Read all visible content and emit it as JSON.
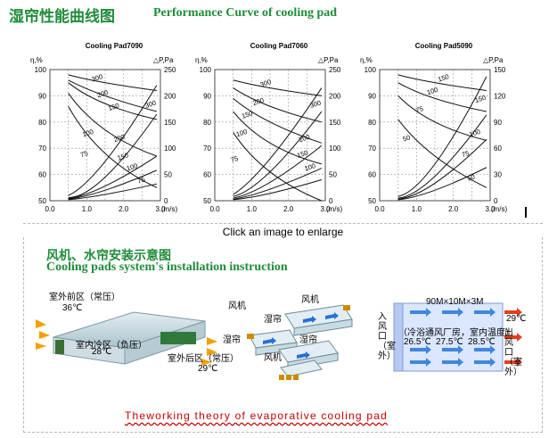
{
  "header": {
    "title_zh": "湿帘性能曲线图",
    "title_en": "Performance Curve of cooling pad"
  },
  "enlarge_text": "Click an image to enlarge",
  "section": {
    "title_zh": "风机、水帘安装示意图",
    "title_en": "Cooling pads system's installation instruction"
  },
  "footer_text": "Theworking theory of evaporative cooling pad",
  "diagram1": {
    "front": "室外前区（常压）",
    "temp_front": "36℃",
    "inner": "室内冷区（负压）",
    "temp_inner": "28℃",
    "back": "室外后区（常压）",
    "temp_back": "29℃"
  },
  "diagram2": {
    "fan1": "风机",
    "pad1": "湿帘",
    "fan2": "风机",
    "pad2": "湿帘",
    "pad3": "湿帘",
    "fan3": "风机"
  },
  "diagram3": {
    "dims": "90M×10M×3M",
    "inlet": "入风口（室外）",
    "outlet": "出风口（室外）",
    "room_desc": "（冷浴通风厂房，室内温度）",
    "temps": [
      "26.5℃",
      "27.5℃",
      "28.5℃"
    ],
    "out_temp": "29℃"
  },
  "chart_data": [
    {
      "type": "line",
      "title": "Cooling Pad7090",
      "ylabel": "η,%",
      "y2label": "△P,Pa",
      "xlabel": "(m/s)",
      "x_ticks": [
        "0.0",
        "1.0",
        "2.0",
        "3.0"
      ],
      "y_ticks": [
        "50",
        "60",
        "70",
        "80",
        "90",
        "100"
      ],
      "y2_ticks": [
        "0",
        "50",
        "100",
        "150",
        "200",
        "250"
      ],
      "xlim": [
        0,
        3
      ],
      "ylim": [
        50,
        100
      ],
      "y2lim": [
        0,
        250
      ],
      "grid": true,
      "efficiency_series": [
        {
          "name": "300",
          "x": [
            0.5,
            1.5,
            2.9
          ],
          "y": [
            98,
            95,
            92
          ]
        },
        {
          "name": "200",
          "x": [
            0.5,
            1.5,
            2.9
          ],
          "y": [
            96,
            90,
            84
          ]
        },
        {
          "name": "150",
          "x": [
            0.5,
            1.5,
            2.9
          ],
          "y": [
            95,
            87,
            81
          ]
        },
        {
          "name": "100",
          "x": [
            0.5,
            1.5,
            2.9
          ],
          "y": [
            91,
            77,
            67
          ]
        },
        {
          "name": "75",
          "x": [
            0.5,
            1.5,
            2.9
          ],
          "y": [
            86,
            68,
            55
          ]
        }
      ],
      "pressure_series": [
        {
          "name": "300",
          "x": [
            0.5,
            1.5,
            2.9
          ],
          "y2": [
            10,
            75,
            220
          ]
        },
        {
          "name": "200",
          "x": [
            0.5,
            1.5,
            2.9
          ],
          "y2": [
            6,
            45,
            165
          ]
        },
        {
          "name": "150",
          "x": [
            0.5,
            1.5,
            2.9
          ],
          "y2": [
            4,
            28,
            85
          ]
        },
        {
          "name": "100",
          "x": [
            0.5,
            1.5,
            2.9
          ],
          "y2": [
            3,
            20,
            58
          ]
        },
        {
          "name": "75",
          "x": [
            0.5,
            1.5,
            2.9
          ],
          "y2": [
            2,
            12,
            32
          ]
        }
      ],
      "labels": [
        {
          "text": "300",
          "x": 1.3,
          "y": 96
        },
        {
          "text": "200",
          "x": 1.45,
          "y": 90
        },
        {
          "text": "150",
          "x": 1.75,
          "y": 85
        },
        {
          "text": "300",
          "x": 2.75,
          "y": 86
        },
        {
          "text": "100",
          "x": 1.05,
          "y": 75
        },
        {
          "text": "200",
          "x": 1.9,
          "y": 73
        },
        {
          "text": "75",
          "x": 0.95,
          "y": 67
        },
        {
          "text": "150",
          "x": 2.0,
          "y": 66
        },
        {
          "text": "100",
          "x": 2.25,
          "y": 62
        },
        {
          "text": "75",
          "x": 2.5,
          "y": 57
        }
      ]
    },
    {
      "type": "line",
      "title": "Cooling Pad7060",
      "ylabel": "η,%",
      "y2label": "△P,Pa",
      "xlabel": "(m/s)",
      "x_ticks": [
        "0.0",
        "1.0",
        "2.0",
        "3.0"
      ],
      "y_ticks": [
        "50",
        "60",
        "70",
        "80",
        "90",
        "100"
      ],
      "y2_ticks": [
        "0",
        "50",
        "100",
        "150",
        "200",
        "250"
      ],
      "xlim": [
        0,
        3
      ],
      "ylim": [
        50,
        100
      ],
      "y2lim": [
        0,
        250
      ],
      "grid": true,
      "efficiency_series": [
        {
          "name": "300",
          "x": [
            0.5,
            1.5,
            2.9
          ],
          "y": [
            96,
            93,
            90
          ]
        },
        {
          "name": "200",
          "x": [
            0.5,
            1.5,
            2.9
          ],
          "y": [
            93,
            86,
            80
          ]
        },
        {
          "name": "150",
          "x": [
            0.5,
            1.5,
            2.9
          ],
          "y": [
            89,
            80,
            72
          ]
        },
        {
          "name": "100",
          "x": [
            0.5,
            1.5,
            2.9
          ],
          "y": [
            84,
            72,
            64
          ]
        },
        {
          "name": "75",
          "x": [
            0.5,
            1.5,
            2.9
          ],
          "y": [
            76,
            61,
            50
          ]
        }
      ],
      "pressure_series": [
        {
          "name": "300",
          "x": [
            0.5,
            1.5,
            2.9
          ],
          "y2": [
            12,
            80,
            215
          ]
        },
        {
          "name": "200",
          "x": [
            0.5,
            1.5,
            2.9
          ],
          "y2": [
            8,
            55,
            170
          ]
        },
        {
          "name": "150",
          "x": [
            0.5,
            1.5,
            2.9
          ],
          "y2": [
            5,
            35,
            105
          ]
        },
        {
          "name": "100",
          "x": [
            0.5,
            1.5,
            2.9
          ],
          "y2": [
            3,
            22,
            62
          ]
        },
        {
          "name": "75",
          "x": [
            0.5,
            1.5,
            2.9
          ],
          "y2": [
            2,
            14,
            40
          ]
        }
      ],
      "labels": [
        {
          "text": "300",
          "x": 1.4,
          "y": 94
        },
        {
          "text": "200",
          "x": 1.2,
          "y": 87
        },
        {
          "text": "150",
          "x": 0.9,
          "y": 82
        },
        {
          "text": "100",
          "x": 0.75,
          "y": 75
        },
        {
          "text": "300",
          "x": 2.75,
          "y": 86
        },
        {
          "text": "75",
          "x": 0.55,
          "y": 65
        },
        {
          "text": "200",
          "x": 2.45,
          "y": 73
        },
        {
          "text": "150",
          "x": 2.4,
          "y": 67
        },
        {
          "text": "100",
          "x": 2.6,
          "y": 62
        }
      ]
    },
    {
      "type": "line",
      "title": "Cooling Pad5090",
      "ylabel": "η,%",
      "y2label": "△P,Pa",
      "xlabel": "(m/s)",
      "x_ticks": [
        "0.0",
        "1.0",
        "2.0",
        "3.0"
      ],
      "y_ticks": [
        "50",
        "60",
        "70",
        "80",
        "90",
        "100"
      ],
      "y2_ticks": [
        "0",
        "30",
        "60",
        "90",
        "120",
        "150"
      ],
      "xlim": [
        0,
        3
      ],
      "ylim": [
        50,
        100
      ],
      "y2lim": [
        0,
        150
      ],
      "grid": true,
      "efficiency_series": [
        {
          "name": "150",
          "x": [
            0.5,
            1.5,
            2.9
          ],
          "y": [
            98,
            95,
            92
          ]
        },
        {
          "name": "100",
          "x": [
            0.5,
            1.5,
            2.9
          ],
          "y": [
            95,
            89,
            84
          ]
        },
        {
          "name": "75",
          "x": [
            0.5,
            1.5,
            2.9
          ],
          "y": [
            90,
            80,
            73
          ]
        },
        {
          "name": "50",
          "x": [
            0.5,
            1.5,
            2.9
          ],
          "y": [
            81,
            67,
            55
          ]
        }
      ],
      "pressure_series": [
        {
          "name": "150",
          "x": [
            0.5,
            1.5,
            2.9
          ],
          "y2": [
            5,
            42,
            142
          ]
        },
        {
          "name": "100",
          "x": [
            0.5,
            1.5,
            2.9
          ],
          "y2": [
            3,
            28,
            98
          ]
        },
        {
          "name": "75",
          "x": [
            0.5,
            1.5,
            2.9
          ],
          "y2": [
            2,
            20,
            70
          ]
        },
        {
          "name": "50",
          "x": [
            0.5,
            1.5,
            2.9
          ],
          "y2": [
            1,
            12,
            38
          ]
        }
      ],
      "labels": [
        {
          "text": "150",
          "x": 1.75,
          "y": 96
        },
        {
          "text": "100",
          "x": 1.45,
          "y": 91
        },
        {
          "text": "75",
          "x": 1.1,
          "y": 84
        },
        {
          "text": "150",
          "x": 2.75,
          "y": 88
        },
        {
          "text": "50",
          "x": 0.75,
          "y": 73
        },
        {
          "text": "100",
          "x": 2.6,
          "y": 75
        },
        {
          "text": "75",
          "x": 2.35,
          "y": 67
        },
        {
          "text": "50",
          "x": 2.5,
          "y": 58
        }
      ]
    }
  ]
}
